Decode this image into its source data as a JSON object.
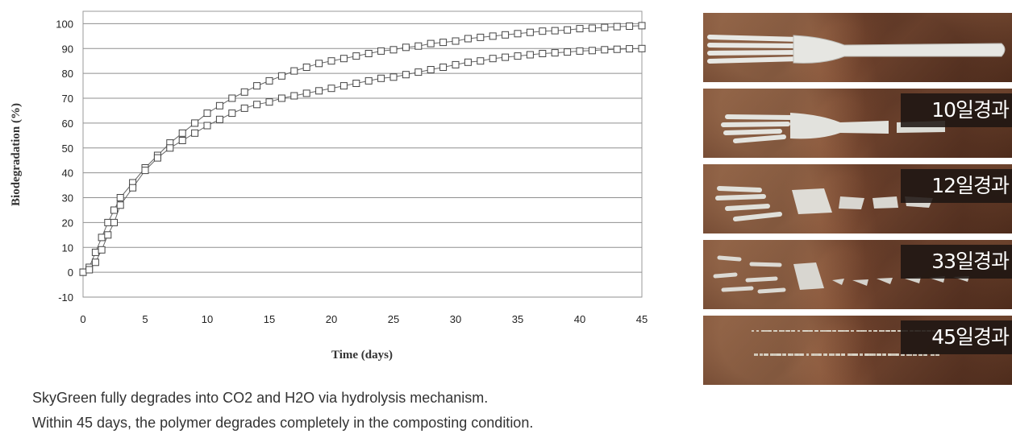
{
  "chart_data": {
    "type": "line",
    "xlabel": "Time (days)",
    "ylabel": "Biodegradation (%)",
    "xlim": [
      0,
      45
    ],
    "ylim": [
      -10,
      105
    ],
    "xticks": [
      0,
      5,
      10,
      15,
      20,
      25,
      30,
      35,
      40,
      45
    ],
    "yticks": [
      -10,
      0,
      10,
      20,
      30,
      40,
      50,
      60,
      70,
      80,
      90,
      100
    ],
    "grid": "horizontal",
    "marker": "square",
    "series": [
      {
        "x": [
          0,
          0.5,
          1,
          1.5,
          2,
          2.5,
          3,
          4,
          5,
          6,
          7,
          8,
          9,
          10,
          11,
          12,
          13,
          14,
          15,
          16,
          17,
          18,
          19,
          20,
          21,
          22,
          23,
          24,
          25,
          26,
          27,
          28,
          29,
          30,
          31,
          32,
          33,
          34,
          35,
          36,
          37,
          38,
          39,
          40,
          41,
          42,
          43,
          44,
          45
        ],
        "y": [
          0,
          2,
          8,
          14,
          20,
          25,
          30,
          36,
          42,
          47,
          52,
          56,
          60,
          64,
          67,
          70,
          72.5,
          75,
          77,
          79,
          81,
          82.5,
          84,
          85,
          86,
          87,
          88,
          89,
          89.5,
          90.5,
          91,
          92,
          92.5,
          93,
          94,
          94.5,
          95,
          95.5,
          96,
          96.5,
          97,
          97.2,
          97.5,
          98,
          98.2,
          98.5,
          98.8,
          99,
          99.2
        ]
      },
      {
        "x": [
          0,
          0.5,
          1,
          1.5,
          2,
          2.5,
          3,
          4,
          5,
          6,
          7,
          8,
          9,
          10,
          11,
          12,
          13,
          14,
          15,
          16,
          17,
          18,
          19,
          20,
          21,
          22,
          23,
          24,
          25,
          26,
          27,
          28,
          29,
          30,
          31,
          32,
          33,
          34,
          35,
          36,
          37,
          38,
          39,
          40,
          41,
          42,
          43,
          44,
          45
        ],
        "y": [
          0,
          1,
          4,
          9,
          15,
          20,
          27,
          34,
          41,
          46,
          50,
          53,
          56,
          59,
          61.5,
          64,
          66,
          67.5,
          68.5,
          70,
          71,
          72,
          73,
          74,
          75,
          76,
          77,
          78,
          78.5,
          79.5,
          80.5,
          81.5,
          82.5,
          83.5,
          84.5,
          85,
          86,
          86.5,
          87,
          87.5,
          88,
          88.3,
          88.6,
          89,
          89.2,
          89.5,
          89.7,
          89.9,
          90
        ]
      }
    ]
  },
  "photos": [
    {
      "label": ""
    },
    {
      "label": "10일경과"
    },
    {
      "label": "12일경과"
    },
    {
      "label": "33일경과"
    },
    {
      "label": "45일경과"
    }
  ],
  "caption": {
    "line1": "SkyGreen fully degrades into CO2 and H2O via hydrolysis mechanism.",
    "line2": "Within 45 days, the polymer degrades completely  in the composting  condition."
  }
}
